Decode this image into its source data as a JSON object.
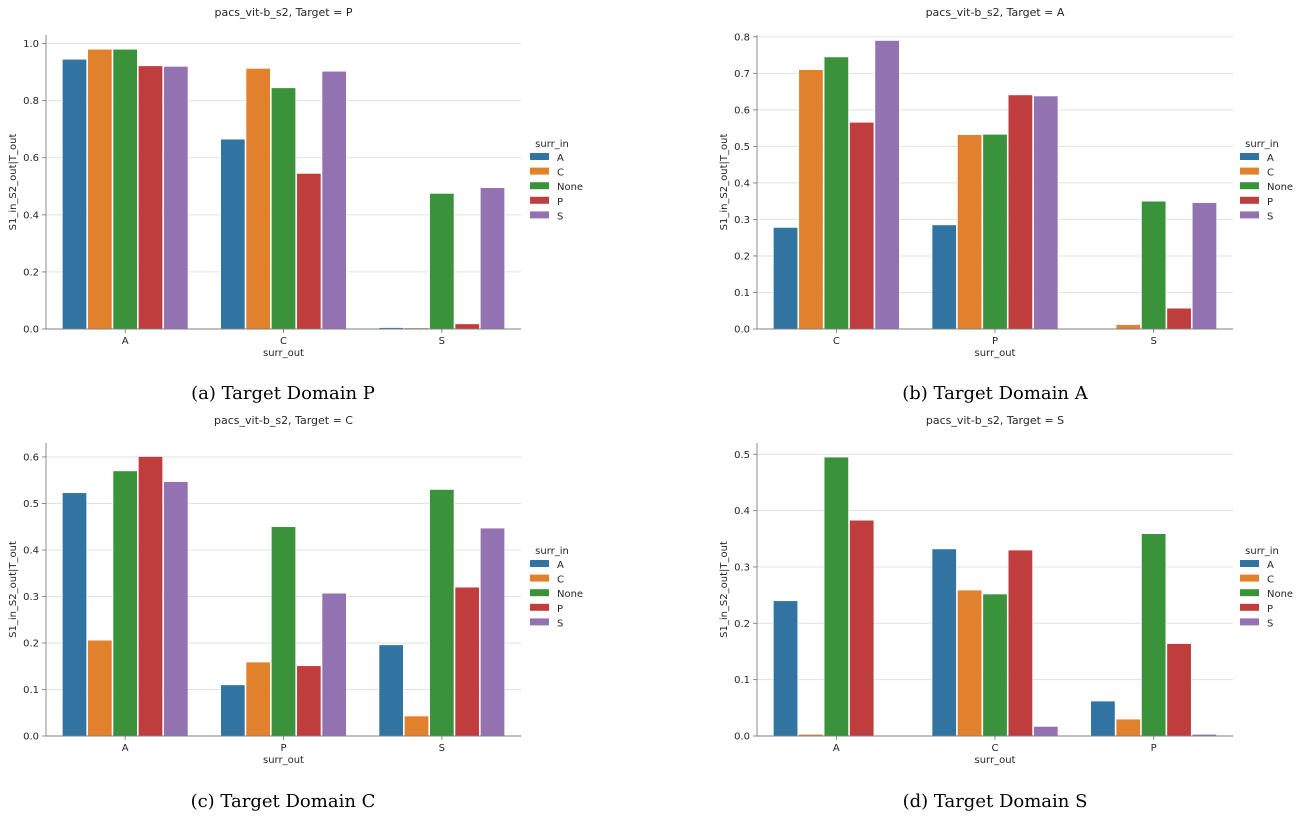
{
  "legend_title": "surr_in",
  "chart_data": [
    {
      "type": "bar",
      "title": "pacs_vit-b_s2, Target = P",
      "caption": "(a) Target Domain P",
      "xlabel": "surr_out",
      "ylabel": "S1_in_S2_out|T_out",
      "categories": [
        "A",
        "C",
        "S"
      ],
      "yticks": [
        "0.0",
        "0.2",
        "0.4",
        "0.6",
        "0.8",
        "1.0"
      ],
      "ylim": [
        0,
        1.03
      ],
      "series": [
        {
          "name": "A",
          "color": "#3274a1",
          "values": [
            0.945,
            0.665,
            0.005
          ]
        },
        {
          "name": "C",
          "color": "#e1812c",
          "values": [
            0.98,
            0.913,
            0.004
          ]
        },
        {
          "name": "None",
          "color": "#3a923a",
          "values": [
            0.98,
            0.845,
            0.475
          ]
        },
        {
          "name": "P",
          "color": "#c03d3e",
          "values": [
            0.922,
            0.545,
            0.018
          ]
        },
        {
          "name": "S",
          "color": "#9372b2",
          "values": [
            0.92,
            0.903,
            0.495
          ]
        }
      ]
    },
    {
      "type": "bar",
      "title": "pacs_vit-b_s2, Target = A",
      "caption": "(b) Target Domain A",
      "xlabel": "surr_out",
      "ylabel": "S1_in_S2_out|T_out",
      "categories": [
        "C",
        "P",
        "S"
      ],
      "yticks": [
        "0.0",
        "0.1",
        "0.2",
        "0.3",
        "0.4",
        "0.5",
        "0.6",
        "0.7",
        "0.8"
      ],
      "ylim": [
        0,
        0.805
      ],
      "series": [
        {
          "name": "A",
          "color": "#3274a1",
          "values": [
            0.278,
            0.285,
            0.0
          ]
        },
        {
          "name": "C",
          "color": "#e1812c",
          "values": [
            0.71,
            0.532,
            0.012
          ]
        },
        {
          "name": "None",
          "color": "#3a923a",
          "values": [
            0.745,
            0.533,
            0.35
          ]
        },
        {
          "name": "P",
          "color": "#c03d3e",
          "values": [
            0.566,
            0.641,
            0.057
          ]
        },
        {
          "name": "S",
          "color": "#9372b2",
          "values": [
            0.79,
            0.638,
            0.346
          ]
        }
      ]
    },
    {
      "type": "bar",
      "title": "pacs_vit-b_s2, Target = C",
      "caption": "(c) Target Domain C",
      "xlabel": "surr_out",
      "ylabel": "S1_in_S2_out|T_out",
      "categories": [
        "A",
        "P",
        "S"
      ],
      "yticks": [
        "0.0",
        "0.1",
        "0.2",
        "0.3",
        "0.4",
        "0.5",
        "0.6"
      ],
      "ylim": [
        0,
        0.63
      ],
      "series": [
        {
          "name": "A",
          "color": "#3274a1",
          "values": [
            0.523,
            0.11,
            0.196
          ]
        },
        {
          "name": "C",
          "color": "#e1812c",
          "values": [
            0.206,
            0.159,
            0.043
          ]
        },
        {
          "name": "None",
          "color": "#3a923a",
          "values": [
            0.57,
            0.45,
            0.53
          ]
        },
        {
          "name": "P",
          "color": "#c03d3e",
          "values": [
            0.601,
            0.151,
            0.32
          ]
        },
        {
          "name": "S",
          "color": "#9372b2",
          "values": [
            0.547,
            0.307,
            0.447
          ]
        }
      ]
    },
    {
      "type": "bar",
      "title": "pacs_vit-b_s2, Target = S",
      "caption": "(d) Target Domain S",
      "xlabel": "surr_out",
      "ylabel": "S1_in_S2_out|T_out",
      "categories": [
        "A",
        "C",
        "P"
      ],
      "yticks": [
        "0.0",
        "0.1",
        "0.2",
        "0.3",
        "0.4",
        "0.5"
      ],
      "ylim": [
        0,
        0.52
      ],
      "series": [
        {
          "name": "A",
          "color": "#3274a1",
          "values": [
            0.24,
            0.332,
            0.062
          ]
        },
        {
          "name": "C",
          "color": "#e1812c",
          "values": [
            0.003,
            0.259,
            0.03
          ]
        },
        {
          "name": "None",
          "color": "#3a923a",
          "values": [
            0.495,
            0.252,
            0.359
          ]
        },
        {
          "name": "P",
          "color": "#c03d3e",
          "values": [
            0.383,
            0.33,
            0.164
          ]
        },
        {
          "name": "S",
          "color": "#9372b2",
          "values": [
            0.0,
            0.017,
            0.003
          ]
        }
      ]
    }
  ]
}
